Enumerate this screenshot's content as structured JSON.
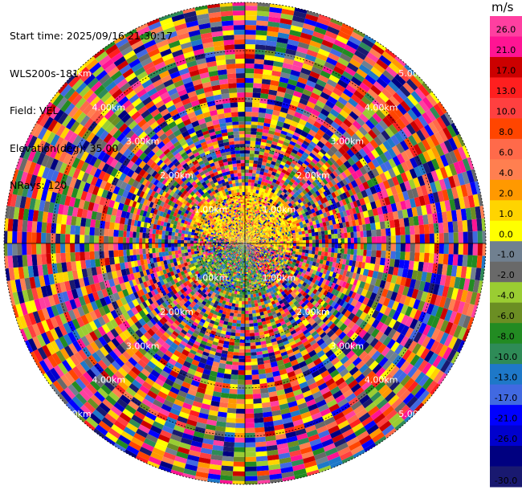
{
  "header": {
    "start_time": "Start time: 2025/09/16 21:30:17",
    "instrument": "WLS200s-181",
    "field": "Field: VEL",
    "elevation": "Elevation(deg): 35.00",
    "nrays": "NRays: 120"
  },
  "chart_data": {
    "type": "heatmap",
    "projection": "polar (PPI)",
    "field": "VEL",
    "nrays": 120,
    "range_rings": [
      "1.00km",
      "2.00km",
      "3.00km",
      "4.00km",
      "5.00km"
    ],
    "max_range_km": 5.0,
    "colorbar": {
      "unit": "m/s",
      "labels": [
        "26.0",
        "21.0",
        "17.0",
        "13.0",
        "10.0",
        "8.0",
        "6.0",
        "4.0",
        "2.0",
        "1.0",
        "0.0",
        "-1.0",
        "-2.0",
        "-4.0",
        "-6.0",
        "-8.0",
        "-10.0",
        "-13.0",
        "-17.0",
        "-21.0",
        "-26.0",
        "-30.0"
      ],
      "colors": [
        "#ff3fa0",
        "#ff1493",
        "#cc0000",
        "#ff1f1f",
        "#ff4040",
        "#ff4500",
        "#ff6a4a",
        "#ff7f50",
        "#ff9900",
        "#ffd400",
        "#ffff00",
        "#708090",
        "#696969",
        "#9acd32",
        "#6b8e23",
        "#228b22",
        "#2e8b57",
        "#1e78c8",
        "#4169e1",
        "#0000ff",
        "#0000cd",
        "#000080",
        "#191970"
      ]
    }
  },
  "colors": {
    "background": "#ffffff",
    "ring": "#000000"
  }
}
